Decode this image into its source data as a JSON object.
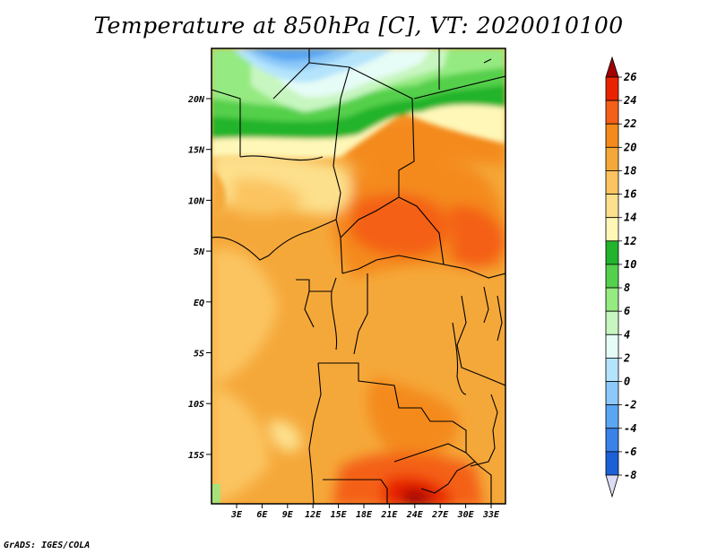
{
  "title": "Temperature at 850hPa [C], VT: 2020010100",
  "credit": "GrADS: IGES/COLA",
  "map": {
    "lat_labels": [
      "20N",
      "15N",
      "10N",
      "5N",
      "EQ",
      "5S",
      "10S",
      "15S"
    ],
    "lon_labels": [
      "3E",
      "6E",
      "9E",
      "12E",
      "15E",
      "18E",
      "21E",
      "24E",
      "27E",
      "30E",
      "33E"
    ]
  },
  "colorbar": {
    "levels": [
      "26",
      "24",
      "22",
      "20",
      "18",
      "16",
      "14",
      "12",
      "10",
      "8",
      "6",
      "4",
      "2",
      "0",
      "-2",
      "-4",
      "-6",
      "-8"
    ],
    "colors": [
      "#a00000",
      "#e82400",
      "#f46018",
      "#f48a1c",
      "#f5a83a",
      "#fbc460",
      "#fde08c",
      "#fff7b8",
      "#21b42c",
      "#55d04c",
      "#95ea82",
      "#c7f6c0",
      "#e6fcf6",
      "#b4e4fc",
      "#8cc8f8",
      "#5aa6f2",
      "#3a82ea",
      "#1c60d8",
      "#0b3ea8",
      "#050a6a",
      "#dcdcf4"
    ]
  },
  "colors": {
    "background": "#ffffff",
    "ocean_ne": "#f4a43c"
  }
}
